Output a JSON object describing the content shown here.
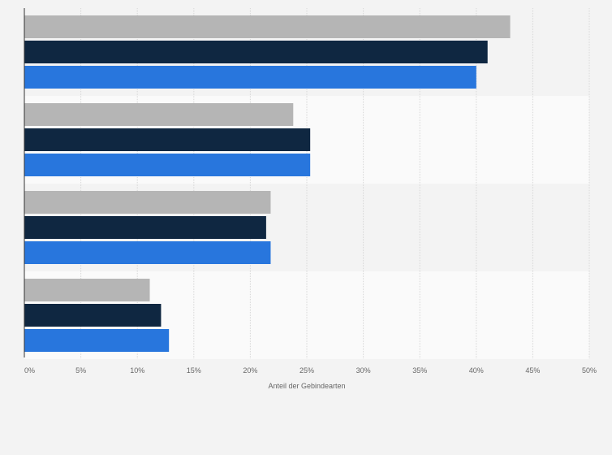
{
  "chart_data": {
    "type": "bar",
    "orientation": "horizontal",
    "xlabel": "Anteil der Gebindearten",
    "xlim": [
      0,
      50
    ],
    "xticks": [
      "0%",
      "5%",
      "10%",
      "15%",
      "20%",
      "25%",
      "30%",
      "35%",
      "40%",
      "45%",
      "50%"
    ],
    "grid": true,
    "groups": 4,
    "series": [
      {
        "color": "#b5b5b5",
        "values": [
          43.0,
          23.8,
          21.8,
          11.1
        ]
      },
      {
        "color": "#0f2741",
        "values": [
          41.0,
          25.3,
          21.4,
          12.1
        ]
      },
      {
        "color": "#2876dd",
        "values": [
          40.0,
          25.3,
          21.8,
          12.8
        ]
      }
    ]
  }
}
